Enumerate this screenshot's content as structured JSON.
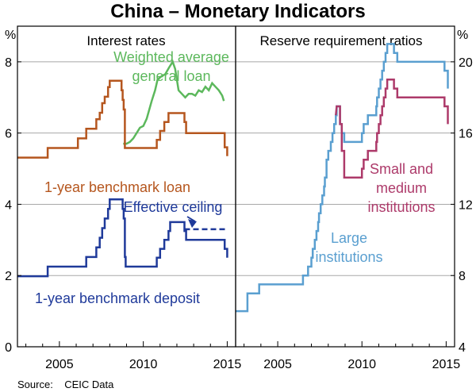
{
  "title": "China – Monetary Indicators",
  "source": "Source:    CEIC Data",
  "colors": {
    "green": "#5cb85c",
    "brown": "#b5561e",
    "navy": "#1f3a9a",
    "lightblue": "#5a9fd0",
    "magenta": "#ad3a6a",
    "grid": "#a8a8a8"
  },
  "chart_data": [
    {
      "type": "line",
      "panel_title": "Interest rates",
      "y_unit": "%",
      "xlim": [
        2002.5,
        2015.5
      ],
      "ylim": [
        0,
        9
      ],
      "y_ticks": [
        0,
        2,
        4,
        6,
        8
      ],
      "x_ticks": [
        2005,
        2010,
        2015
      ],
      "grid": true,
      "series": [
        {
          "name": "Weighted average general loan",
          "label_lines": [
            "Weighted average",
            "general loan"
          ],
          "color_key": "green",
          "points": [
            [
              2008.8,
              5.7
            ],
            [
              2009.0,
              5.7
            ],
            [
              2009.2,
              5.75
            ],
            [
              2009.4,
              5.85
            ],
            [
              2009.6,
              6.0
            ],
            [
              2009.8,
              6.15
            ],
            [
              2010.0,
              6.2
            ],
            [
              2010.2,
              6.4
            ],
            [
              2010.5,
              6.9
            ],
            [
              2010.7,
              7.2
            ],
            [
              2010.85,
              7.5
            ],
            [
              2011.1,
              7.6
            ],
            [
              2011.3,
              7.65
            ],
            [
              2011.55,
              7.85
            ],
            [
              2011.75,
              8.0
            ],
            [
              2011.9,
              7.8
            ],
            [
              2012.1,
              7.2
            ],
            [
              2012.3,
              7.1
            ],
            [
              2012.5,
              7.0
            ],
            [
              2012.7,
              7.1
            ],
            [
              2012.9,
              7.1
            ],
            [
              2013.1,
              7.05
            ],
            [
              2013.3,
              7.2
            ],
            [
              2013.5,
              7.15
            ],
            [
              2013.7,
              7.3
            ],
            [
              2013.9,
              7.2
            ],
            [
              2014.1,
              7.4
            ],
            [
              2014.3,
              7.3
            ],
            [
              2014.5,
              7.2
            ],
            [
              2014.7,
              7.05
            ],
            [
              2014.8,
              6.9
            ]
          ]
        },
        {
          "name": "1-year benchmark loan",
          "color_key": "brown",
          "points": [
            [
              2002.5,
              5.31
            ],
            [
              2004.3,
              5.31
            ],
            [
              2004.3,
              5.58
            ],
            [
              2006.1,
              5.58
            ],
            [
              2006.1,
              5.85
            ],
            [
              2006.6,
              5.85
            ],
            [
              2006.6,
              6.12
            ],
            [
              2007.2,
              6.12
            ],
            [
              2007.2,
              6.39
            ],
            [
              2007.4,
              6.39
            ],
            [
              2007.4,
              6.57
            ],
            [
              2007.55,
              6.57
            ],
            [
              2007.55,
              6.84
            ],
            [
              2007.7,
              6.84
            ],
            [
              2007.7,
              7.02
            ],
            [
              2007.9,
              7.02
            ],
            [
              2007.9,
              7.29
            ],
            [
              2008.0,
              7.29
            ],
            [
              2008.0,
              7.47
            ],
            [
              2008.7,
              7.47
            ],
            [
              2008.7,
              7.2
            ],
            [
              2008.77,
              7.2
            ],
            [
              2008.77,
              6.93
            ],
            [
              2008.83,
              6.93
            ],
            [
              2008.83,
              6.66
            ],
            [
              2008.9,
              6.66
            ],
            [
              2008.9,
              5.58
            ],
            [
              2010.8,
              5.58
            ],
            [
              2010.8,
              5.81
            ],
            [
              2011.0,
              5.81
            ],
            [
              2011.0,
              6.06
            ],
            [
              2011.25,
              6.06
            ],
            [
              2011.25,
              6.31
            ],
            [
              2011.5,
              6.31
            ],
            [
              2011.5,
              6.56
            ],
            [
              2012.45,
              6.56
            ],
            [
              2012.45,
              6.31
            ],
            [
              2012.55,
              6.31
            ],
            [
              2012.55,
              6.0
            ],
            [
              2014.85,
              6.0
            ],
            [
              2014.85,
              5.6
            ],
            [
              2015.0,
              5.6
            ],
            [
              2015.0,
              5.35
            ]
          ]
        },
        {
          "name": "Effective ceiling",
          "color_key": "navy",
          "dashed": true,
          "points": [
            [
              2012.45,
              3.3
            ],
            [
              2015.0,
              3.3
            ]
          ]
        },
        {
          "name": "1-year benchmark deposit",
          "color_key": "navy",
          "points": [
            [
              2002.5,
              1.98
            ],
            [
              2004.3,
              1.98
            ],
            [
              2004.3,
              2.25
            ],
            [
              2006.6,
              2.25
            ],
            [
              2006.6,
              2.52
            ],
            [
              2007.2,
              2.52
            ],
            [
              2007.2,
              2.79
            ],
            [
              2007.4,
              2.79
            ],
            [
              2007.4,
              3.06
            ],
            [
              2007.55,
              3.06
            ],
            [
              2007.55,
              3.33
            ],
            [
              2007.7,
              3.33
            ],
            [
              2007.7,
              3.6
            ],
            [
              2007.9,
              3.6
            ],
            [
              2007.9,
              3.87
            ],
            [
              2008.0,
              3.87
            ],
            [
              2008.0,
              4.14
            ],
            [
              2008.77,
              4.14
            ],
            [
              2008.77,
              3.87
            ],
            [
              2008.83,
              3.87
            ],
            [
              2008.83,
              3.6
            ],
            [
              2008.9,
              3.6
            ],
            [
              2008.9,
              2.52
            ],
            [
              2008.95,
              2.52
            ],
            [
              2008.95,
              2.25
            ],
            [
              2010.8,
              2.25
            ],
            [
              2010.8,
              2.5
            ],
            [
              2011.0,
              2.5
            ],
            [
              2011.0,
              2.75
            ],
            [
              2011.25,
              2.75
            ],
            [
              2011.25,
              3.0
            ],
            [
              2011.5,
              3.0
            ],
            [
              2011.5,
              3.25
            ],
            [
              2011.6,
              3.25
            ],
            [
              2011.6,
              3.5
            ],
            [
              2012.45,
              3.5
            ],
            [
              2012.45,
              3.25
            ],
            [
              2012.55,
              3.25
            ],
            [
              2012.55,
              3.0
            ],
            [
              2014.85,
              3.0
            ],
            [
              2014.85,
              2.75
            ],
            [
              2015.0,
              2.75
            ],
            [
              2015.0,
              2.5
            ]
          ]
        }
      ]
    },
    {
      "type": "line",
      "panel_title": "Reserve requirement ratios",
      "y_unit": "%",
      "xlim": [
        2002.5,
        2015.5
      ],
      "ylim": [
        4,
        22
      ],
      "y_ticks": [
        4,
        8,
        12,
        16,
        20
      ],
      "x_ticks": [
        2005,
        2010,
        2015
      ],
      "grid": true,
      "series": [
        {
          "name": "Large institutions",
          "label_lines": [
            "Large",
            "institutions"
          ],
          "color_key": "lightblue",
          "points": [
            [
              2002.5,
              6.0
            ],
            [
              2003.2,
              6.0
            ],
            [
              2003.2,
              7.0
            ],
            [
              2003.9,
              7.0
            ],
            [
              2003.9,
              7.5
            ],
            [
              2006.5,
              7.5
            ],
            [
              2006.5,
              8.0
            ],
            [
              2006.8,
              8.0
            ],
            [
              2006.8,
              8.5
            ],
            [
              2007.0,
              8.5
            ],
            [
              2007.0,
              9.0
            ],
            [
              2007.08,
              9.0
            ],
            [
              2007.08,
              9.5
            ],
            [
              2007.2,
              9.5
            ],
            [
              2007.2,
              10.0
            ],
            [
              2007.3,
              10.0
            ],
            [
              2007.3,
              10.5
            ],
            [
              2007.4,
              10.5
            ],
            [
              2007.4,
              11.0
            ],
            [
              2007.45,
              11.0
            ],
            [
              2007.45,
              11.5
            ],
            [
              2007.55,
              11.5
            ],
            [
              2007.55,
              12.0
            ],
            [
              2007.65,
              12.0
            ],
            [
              2007.65,
              12.5
            ],
            [
              2007.75,
              12.5
            ],
            [
              2007.75,
              13.0
            ],
            [
              2007.8,
              13.0
            ],
            [
              2007.8,
              13.5
            ],
            [
              2007.9,
              13.5
            ],
            [
              2007.9,
              14.5
            ],
            [
              2008.0,
              14.5
            ],
            [
              2008.0,
              15.0
            ],
            [
              2008.15,
              15.0
            ],
            [
              2008.15,
              15.5
            ],
            [
              2008.25,
              15.5
            ],
            [
              2008.25,
              16.0
            ],
            [
              2008.35,
              16.0
            ],
            [
              2008.35,
              16.5
            ],
            [
              2008.45,
              16.5
            ],
            [
              2008.45,
              17.0
            ],
            [
              2008.5,
              17.0
            ],
            [
              2008.5,
              17.5
            ],
            [
              2008.7,
              17.5
            ],
            [
              2008.7,
              16.5
            ],
            [
              2008.8,
              16.5
            ],
            [
              2008.8,
              16.0
            ],
            [
              2008.95,
              16.0
            ],
            [
              2008.95,
              15.5
            ],
            [
              2010.0,
              15.5
            ],
            [
              2010.0,
              16.0
            ],
            [
              2010.1,
              16.0
            ],
            [
              2010.1,
              16.5
            ],
            [
              2010.35,
              16.5
            ],
            [
              2010.35,
              17.0
            ],
            [
              2010.85,
              17.0
            ],
            [
              2010.85,
              17.5
            ],
            [
              2010.9,
              17.5
            ],
            [
              2010.9,
              18.0
            ],
            [
              2011.0,
              18.0
            ],
            [
              2011.0,
              18.5
            ],
            [
              2011.1,
              18.5
            ],
            [
              2011.1,
              19.0
            ],
            [
              2011.2,
              19.0
            ],
            [
              2011.2,
              19.5
            ],
            [
              2011.3,
              19.5
            ],
            [
              2011.3,
              20.0
            ],
            [
              2011.4,
              20.0
            ],
            [
              2011.4,
              20.5
            ],
            [
              2011.5,
              20.5
            ],
            [
              2011.5,
              21.0
            ],
            [
              2011.9,
              21.0
            ],
            [
              2011.9,
              20.5
            ],
            [
              2012.1,
              20.5
            ],
            [
              2012.1,
              20.0
            ],
            [
              2014.9,
              20.0
            ],
            [
              2014.9,
              19.5
            ],
            [
              2015.1,
              19.5
            ],
            [
              2015.1,
              18.5
            ]
          ]
        },
        {
          "name": "Small and medium institutions",
          "label_lines": [
            "Small and",
            "medium",
            "institutions"
          ],
          "color_key": "magenta",
          "points": [
            [
              2008.45,
              17.0
            ],
            [
              2008.5,
              17.5
            ],
            [
              2008.7,
              17.5
            ],
            [
              2008.7,
              16.5
            ],
            [
              2008.8,
              16.5
            ],
            [
              2008.8,
              15.0
            ],
            [
              2008.95,
              15.0
            ],
            [
              2008.95,
              13.5
            ],
            [
              2010.0,
              13.5
            ],
            [
              2010.0,
              14.0
            ],
            [
              2010.1,
              14.0
            ],
            [
              2010.1,
              14.5
            ],
            [
              2010.35,
              14.5
            ],
            [
              2010.35,
              15.0
            ],
            [
              2010.85,
              15.0
            ],
            [
              2010.85,
              15.5
            ],
            [
              2010.9,
              15.5
            ],
            [
              2010.9,
              16.0
            ],
            [
              2011.0,
              16.0
            ],
            [
              2011.0,
              16.5
            ],
            [
              2011.1,
              16.5
            ],
            [
              2011.1,
              17.0
            ],
            [
              2011.2,
              17.0
            ],
            [
              2011.2,
              17.5
            ],
            [
              2011.3,
              17.5
            ],
            [
              2011.3,
              18.0
            ],
            [
              2011.4,
              18.0
            ],
            [
              2011.4,
              18.5
            ],
            [
              2011.5,
              18.5
            ],
            [
              2011.5,
              19.0
            ],
            [
              2011.9,
              19.0
            ],
            [
              2011.9,
              18.5
            ],
            [
              2012.1,
              18.5
            ],
            [
              2012.1,
              18.0
            ],
            [
              2014.9,
              18.0
            ],
            [
              2014.9,
              17.5
            ],
            [
              2015.1,
              17.5
            ],
            [
              2015.1,
              16.5
            ]
          ]
        }
      ]
    }
  ]
}
